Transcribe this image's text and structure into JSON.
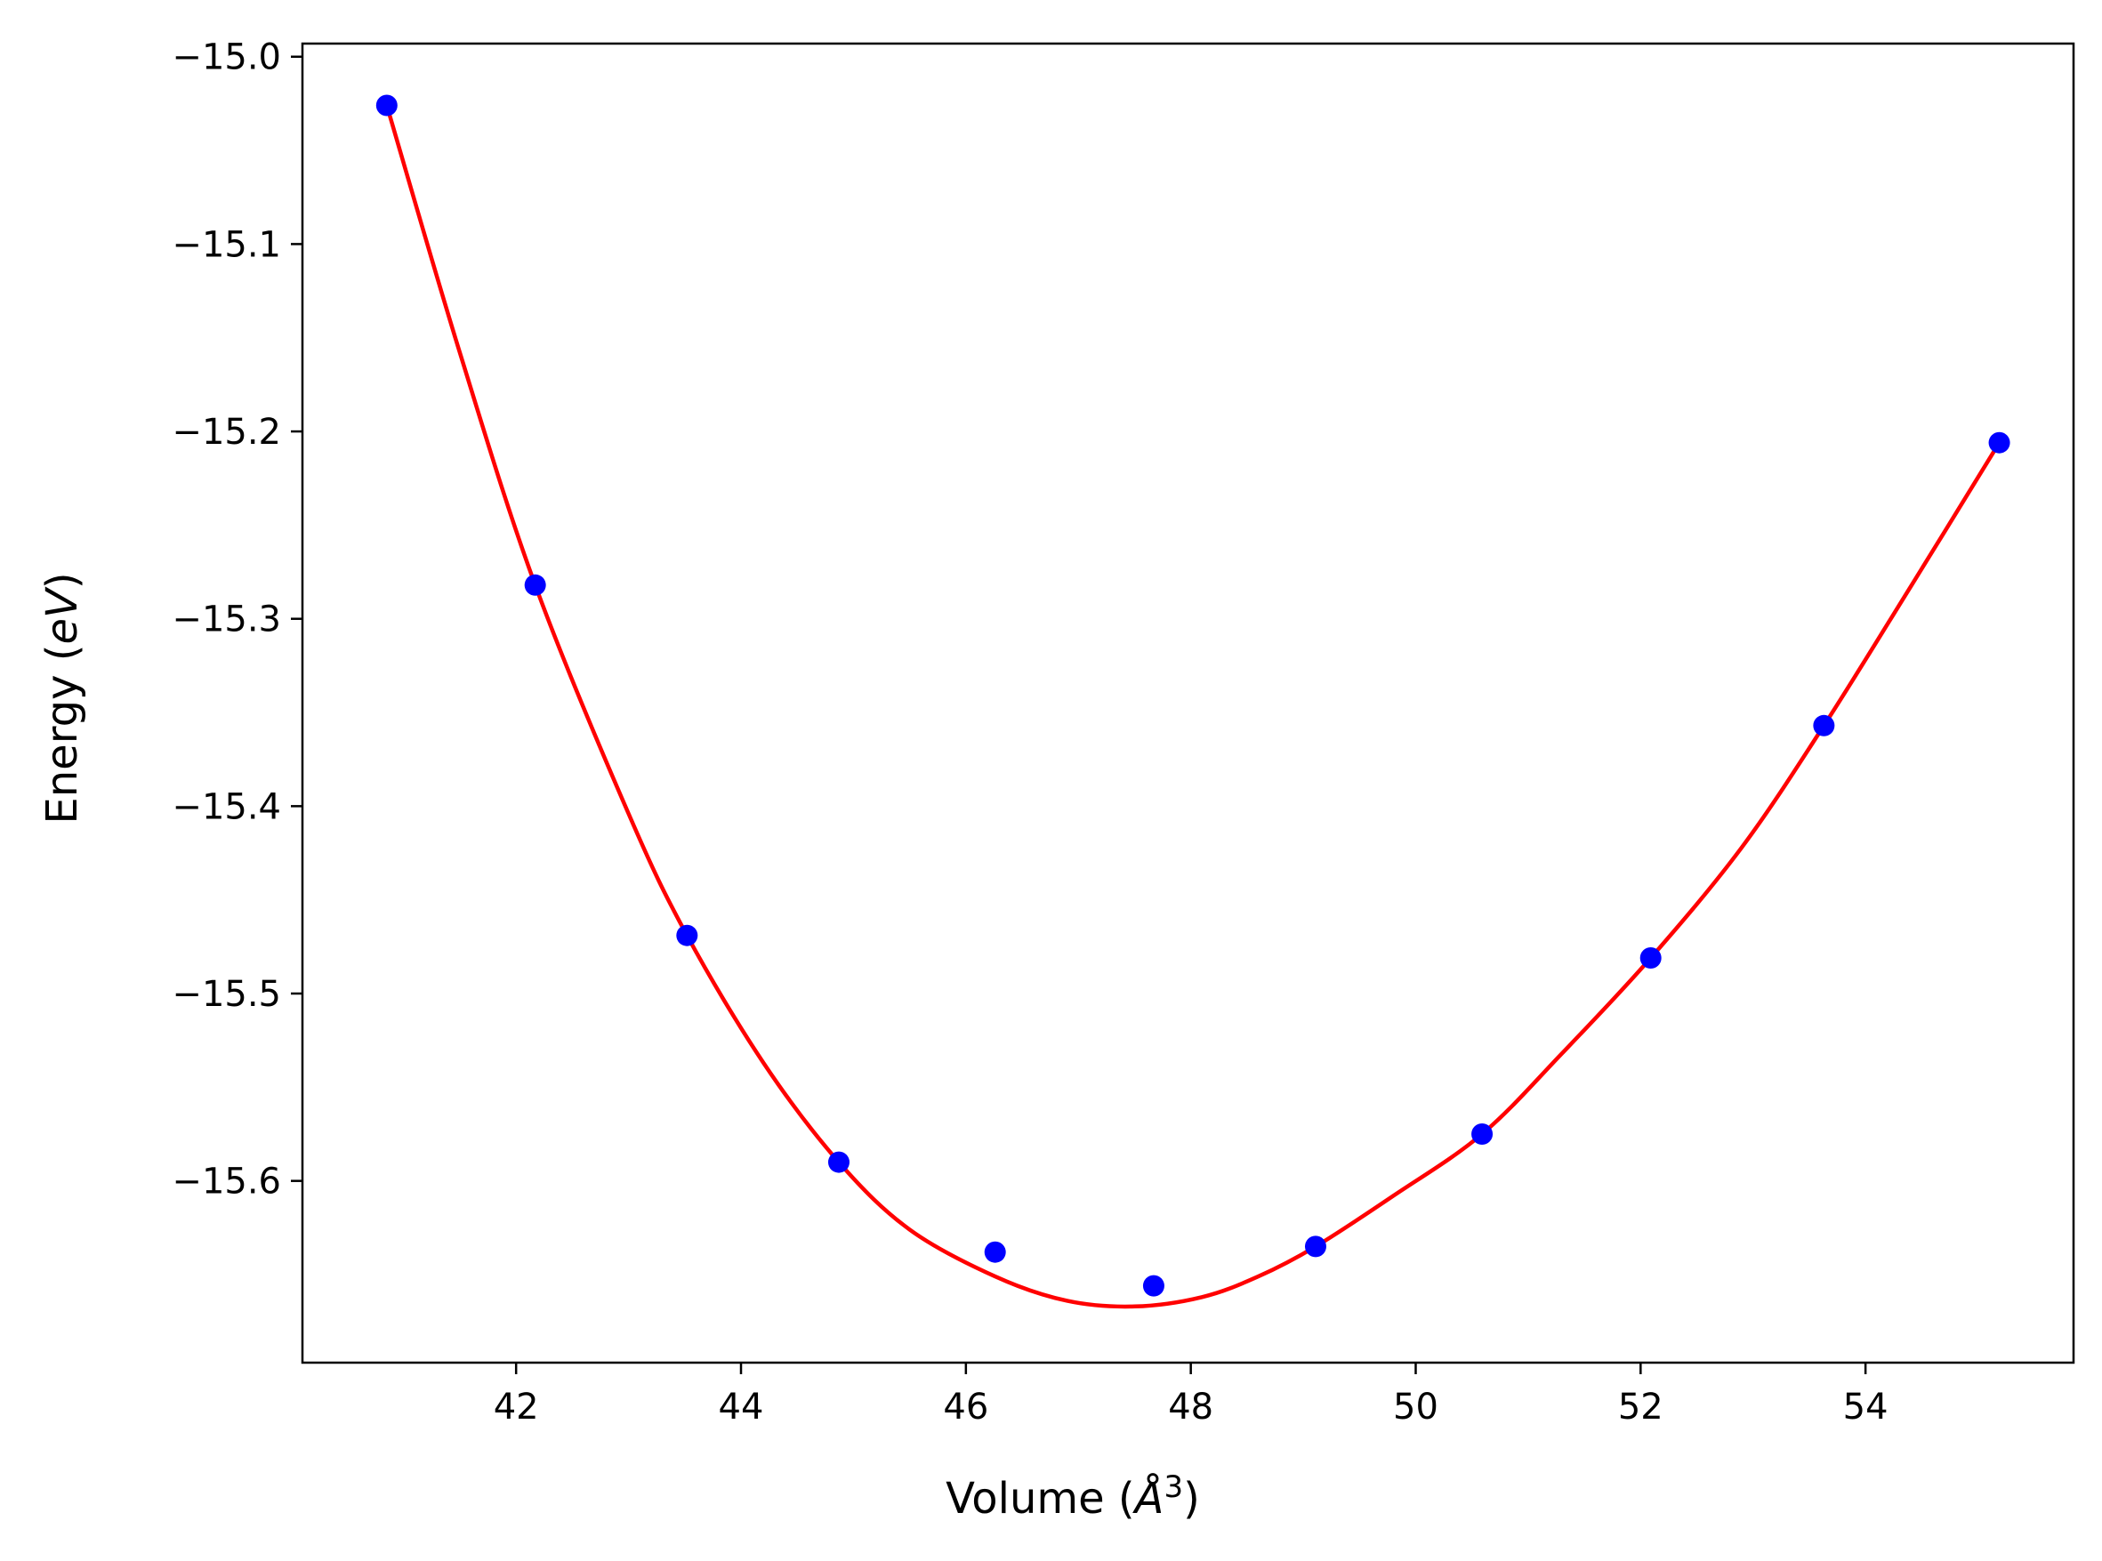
{
  "chart_data": {
    "type": "scatter",
    "title": "",
    "xlabel_main": "Volume (",
    "xlabel_unit": "Å",
    "xlabel_exp": "3",
    "xlabel_close": ")",
    "ylabel_main": "Energy (",
    "ylabel_unit": "eV",
    "ylabel_close": ")",
    "xlim": [
      40.1,
      55.85
    ],
    "ylim": [
      -15.697,
      -14.993
    ],
    "xticks": [
      42,
      44,
      46,
      48,
      50,
      52,
      54
    ],
    "xtick_labels": [
      "42",
      "44",
      "46",
      "48",
      "50",
      "52",
      "54"
    ],
    "yticks": [
      -15.0,
      -15.1,
      -15.2,
      -15.3,
      -15.4,
      -15.5,
      -15.6
    ],
    "ytick_labels": [
      "−15.0",
      "−15.1",
      "−15.2",
      "−15.3",
      "−15.4",
      "−15.5",
      "−15.6"
    ],
    "grid": false,
    "series": [
      {
        "kind": "points",
        "color": "#0000ff",
        "x": [
          40.85,
          42.17,
          43.52,
          44.87,
          46.26,
          47.67,
          49.11,
          50.59,
          52.09,
          53.63,
          55.19
        ],
        "y": [
          -15.026,
          -15.282,
          -15.469,
          -15.59,
          -15.638,
          -15.656,
          -15.635,
          -15.575,
          -15.481,
          -15.357,
          -15.206
        ]
      },
      {
        "kind": "fit-curve",
        "color": "#ff0000",
        "x": [
          40.85,
          41.5,
          42.17,
          43.0,
          43.52,
          44.2,
          44.87,
          45.5,
          46.26,
          46.9,
          47.5,
          48.1,
          48.6,
          49.11,
          49.8,
          50.59,
          51.3,
          52.09,
          52.9,
          53.63,
          54.4,
          55.19
        ],
        "y": [
          -15.026,
          -15.158,
          -15.282,
          -15.404,
          -15.469,
          -15.537,
          -15.59,
          -15.626,
          -15.651,
          -15.664,
          -15.667,
          -15.662,
          -15.651,
          -15.635,
          -15.608,
          -15.575,
          -15.532,
          -15.481,
          -15.422,
          -15.357,
          -15.283,
          -15.206
        ]
      }
    ]
  }
}
